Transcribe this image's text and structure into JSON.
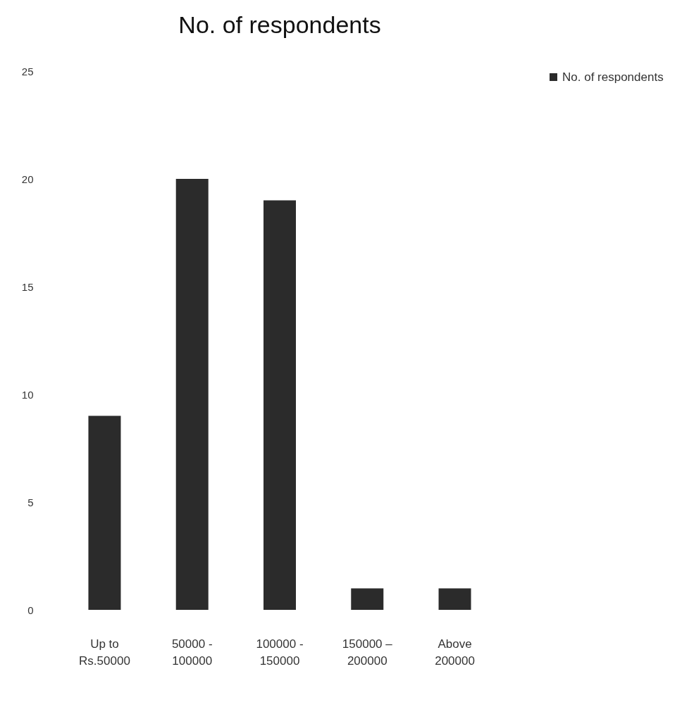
{
  "chart_data": {
    "type": "bar",
    "title": "No. of respondents",
    "categories": [
      "Up to Rs.50000",
      "50000 - 100000",
      "100000 - 150000",
      "150000 – 200000",
      "Above 200000"
    ],
    "series": [
      {
        "name": "No. of respondents",
        "color": "#2b2b2b",
        "values": [
          9,
          20,
          19,
          1,
          1
        ]
      }
    ],
    "ylim": [
      0,
      25
    ],
    "yticks": [
      0,
      5,
      10,
      15,
      20,
      25
    ],
    "grid": false,
    "legend": "right"
  }
}
